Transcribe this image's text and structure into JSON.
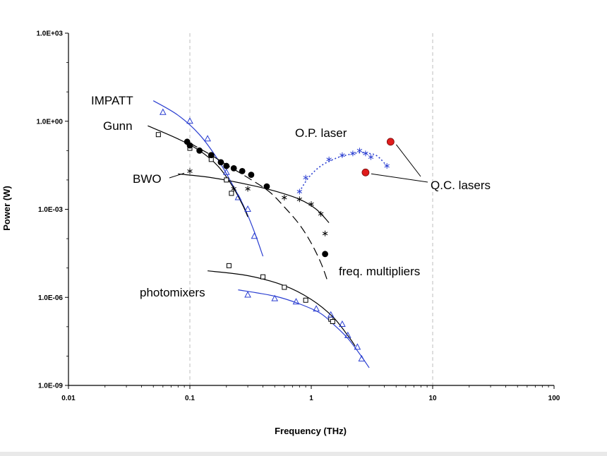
{
  "chart_data": {
    "type": "scatter",
    "title": "",
    "xlabel": "Frequency (THz)",
    "ylabel": "Power (W)",
    "xscale": "log",
    "yscale": "log",
    "xlim": [
      0.01,
      100
    ],
    "ylim": [
      1e-09,
      1000
    ],
    "grid": "vertical dashed at 0.1 and 10",
    "legend": "none; series labeled directly on plot",
    "x_tick_labels": [
      "0.01",
      "0.1",
      "1",
      "10",
      "100"
    ],
    "y_tick_labels": [
      "1.0E-09",
      "1.0E-06",
      "1.0E-03",
      "1.0E+00",
      "1.0E+03"
    ],
    "colors": {
      "black": "#000000",
      "blue": "#2b3fd1",
      "red": "#e01c1c"
    },
    "series": [
      {
        "name": "IMPATT",
        "marker": "triangle-open",
        "color": "#2b3fd1",
        "points": [
          [
            0.06,
            2.0
          ],
          [
            0.1,
            1.0
          ],
          [
            0.14,
            0.25
          ],
          [
            0.2,
            0.018
          ],
          [
            0.25,
            0.0025
          ],
          [
            0.3,
            0.001
          ],
          [
            0.34,
            0.00012
          ]
        ],
        "fit": [
          [
            0.05,
            5.0
          ],
          [
            0.08,
            1.6
          ],
          [
            0.12,
            0.35
          ],
          [
            0.17,
            0.05
          ],
          [
            0.22,
            0.008
          ],
          [
            0.28,
            0.0012
          ],
          [
            0.34,
            0.00017
          ],
          [
            0.4,
            2.5e-05
          ]
        ]
      },
      {
        "name": "Gunn",
        "marker": "square-open",
        "color": "#000000",
        "points": [
          [
            0.055,
            0.35
          ],
          [
            0.1,
            0.12
          ],
          [
            0.15,
            0.05
          ],
          [
            0.2,
            0.01
          ],
          [
            0.22,
            0.0035
          ]
        ],
        "fit": [
          [
            0.045,
            0.7
          ],
          [
            0.08,
            0.25
          ],
          [
            0.12,
            0.1
          ],
          [
            0.17,
            0.03
          ],
          [
            0.22,
            0.007
          ],
          [
            0.27,
            0.0015
          ],
          [
            0.3,
            0.00055
          ]
        ]
      },
      {
        "name": "freq. multipliers",
        "marker": "circle-filled",
        "color": "#000000",
        "linestyle": "dashed",
        "points": [
          [
            0.095,
            0.2
          ],
          [
            0.1,
            0.15
          ],
          [
            0.12,
            0.1
          ],
          [
            0.15,
            0.07
          ],
          [
            0.18,
            0.04
          ],
          [
            0.2,
            0.03
          ],
          [
            0.23,
            0.025
          ],
          [
            0.27,
            0.02
          ],
          [
            0.32,
            0.015
          ],
          [
            0.43,
            0.006
          ],
          [
            1.3,
            3e-05
          ]
        ],
        "fit": [
          [
            0.1,
            0.18
          ],
          [
            0.15,
            0.07
          ],
          [
            0.2,
            0.033
          ],
          [
            0.3,
            0.012
          ],
          [
            0.45,
            0.004
          ],
          [
            0.6,
            0.0012
          ],
          [
            0.8,
            0.0003
          ],
          [
            1.0,
            7e-05
          ],
          [
            1.2,
            1.5e-05
          ],
          [
            1.35,
            4e-06
          ]
        ]
      },
      {
        "name": "BWO",
        "marker": "star",
        "color": "#000000",
        "points": [
          [
            0.1,
            0.02
          ],
          [
            0.23,
            0.005
          ],
          [
            0.3,
            0.005
          ],
          [
            0.6,
            0.0025
          ],
          [
            0.8,
            0.0022
          ],
          [
            1.0,
            0.0015
          ],
          [
            1.2,
            0.0007
          ],
          [
            1.3,
            0.00015
          ]
        ],
        "fit": [
          [
            0.08,
            0.016
          ],
          [
            0.15,
            0.012
          ],
          [
            0.3,
            0.007
          ],
          [
            0.5,
            0.0042
          ],
          [
            0.8,
            0.0022
          ],
          [
            1.1,
            0.001
          ],
          [
            1.4,
            0.00035
          ]
        ]
      },
      {
        "name": "O.P. laser",
        "marker": "star",
        "color": "#2b3fd1",
        "linestyle": "dotted",
        "points": [
          [
            0.8,
            0.004
          ],
          [
            0.9,
            0.012
          ],
          [
            1.4,
            0.05
          ],
          [
            1.8,
            0.07
          ],
          [
            2.2,
            0.08
          ],
          [
            2.5,
            0.1
          ],
          [
            2.8,
            0.08
          ],
          [
            3.1,
            0.06
          ],
          [
            4.2,
            0.03
          ]
        ],
        "fit": [
          [
            0.8,
            0.004
          ],
          [
            0.95,
            0.012
          ],
          [
            1.2,
            0.03
          ],
          [
            1.6,
            0.055
          ],
          [
            2.0,
            0.072
          ],
          [
            2.5,
            0.085
          ],
          [
            3.0,
            0.08
          ],
          [
            3.5,
            0.065
          ],
          [
            4.2,
            0.03
          ]
        ]
      },
      {
        "name": "Q.C. lasers",
        "marker": "circle-filled",
        "color": "#e01c1c",
        "points": [
          [
            2.8,
            0.018
          ],
          [
            4.5,
            0.2
          ]
        ]
      },
      {
        "name": "photomixers (squares)",
        "marker": "square-open",
        "color": "#000000",
        "points": [
          [
            0.21,
            1.2e-05
          ],
          [
            0.4,
            5e-06
          ],
          [
            0.6,
            2.2e-06
          ],
          [
            0.9,
            8e-07
          ],
          [
            1.45,
            1.8e-07
          ],
          [
            1.5,
            1.5e-07
          ]
        ],
        "fit": [
          [
            0.14,
            8e-06
          ],
          [
            0.3,
            5.5e-06
          ],
          [
            0.6,
            2.5e-06
          ],
          [
            1.0,
            8.5e-07
          ],
          [
            1.5,
            2.2e-07
          ],
          [
            2.0,
            5e-08
          ],
          [
            2.3,
            2.2e-08
          ]
        ]
      },
      {
        "name": "photomixers (triangles)",
        "marker": "triangle-open",
        "color": "#2b3fd1",
        "points": [
          [
            0.3,
            1.2e-06
          ],
          [
            0.5,
            9e-07
          ],
          [
            0.75,
            7e-07
          ],
          [
            1.1,
            4e-07
          ],
          [
            1.45,
            2.5e-07
          ],
          [
            1.8,
            1.2e-07
          ],
          [
            2.0,
            5e-08
          ],
          [
            2.4,
            2e-08
          ],
          [
            2.6,
            8e-09
          ]
        ],
        "fit": [
          [
            0.25,
            1.8e-06
          ],
          [
            0.5,
            1.1e-06
          ],
          [
            0.8,
            6e-07
          ],
          [
            1.2,
            2.8e-07
          ],
          [
            1.6,
            1e-07
          ],
          [
            2.0,
            4e-08
          ],
          [
            2.5,
            1.2e-08
          ],
          [
            3.0,
            4e-09
          ]
        ]
      }
    ],
    "labels": [
      {
        "text": "IMPATT"
      },
      {
        "text": "Gunn"
      },
      {
        "text": "BWO"
      },
      {
        "text": "O.P. laser"
      },
      {
        "text": "Q.C. lasers"
      },
      {
        "text": "freq. multipliers"
      },
      {
        "text": "photomixers"
      }
    ]
  }
}
